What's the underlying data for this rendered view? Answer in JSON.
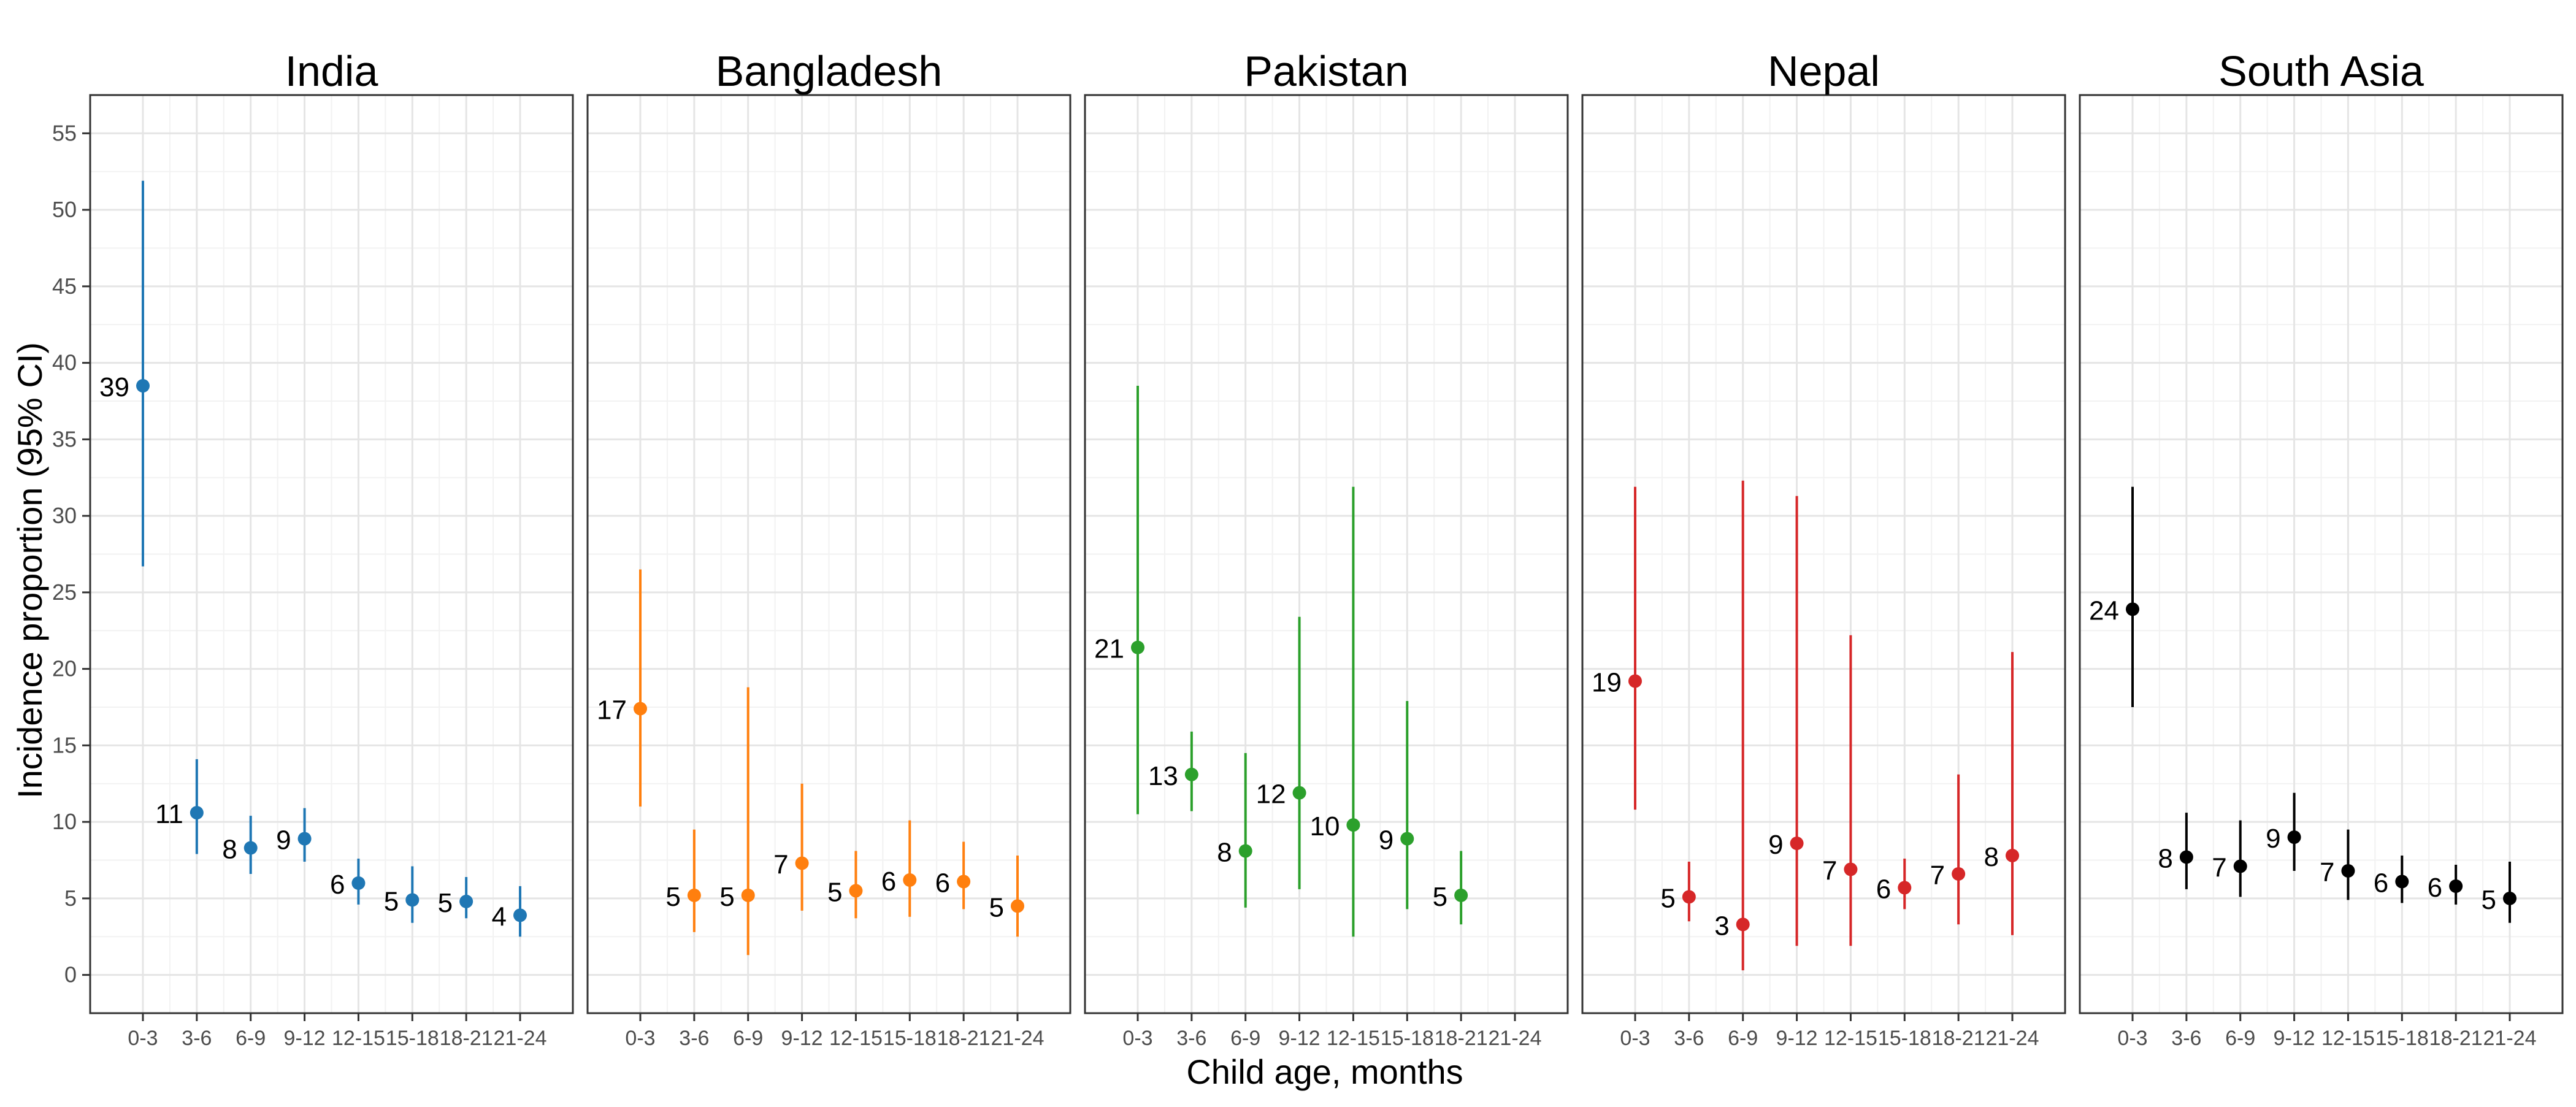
{
  "chart_data": {
    "type": "scatter",
    "variant": "point-range faceted",
    "ylabel": "Incidence proportion (95% CI)",
    "xlabel": "Child age, months",
    "ylim": [
      -2.5,
      57.5
    ],
    "yticks": [
      0,
      5,
      10,
      15,
      20,
      25,
      30,
      35,
      40,
      45,
      50,
      55
    ],
    "categories": [
      "0-3",
      "3-6",
      "6-9",
      "9-12",
      "12-15",
      "15-18",
      "18-21",
      "21-24"
    ],
    "grid": true,
    "legend": "none",
    "panels": [
      {
        "title": "India",
        "color": "#1f77b4",
        "points": [
          {
            "x": "0-3",
            "y": 38.5,
            "lo": 26.7,
            "hi": 51.9,
            "label": "39"
          },
          {
            "x": "3-6",
            "y": 10.6,
            "lo": 7.9,
            "hi": 14.1,
            "label": "11"
          },
          {
            "x": "6-9",
            "y": 8.3,
            "lo": 6.6,
            "hi": 10.4,
            "label": "8"
          },
          {
            "x": "9-12",
            "y": 8.9,
            "lo": 7.4,
            "hi": 10.9,
            "label": "9"
          },
          {
            "x": "12-15",
            "y": 6.0,
            "lo": 4.6,
            "hi": 7.6,
            "label": "6"
          },
          {
            "x": "15-18",
            "y": 4.9,
            "lo": 3.4,
            "hi": 7.1,
            "label": "5"
          },
          {
            "x": "18-21",
            "y": 4.8,
            "lo": 3.7,
            "hi": 6.4,
            "label": "5"
          },
          {
            "x": "21-24",
            "y": 3.9,
            "lo": 2.5,
            "hi": 5.8,
            "label": "4"
          }
        ]
      },
      {
        "title": "Bangladesh",
        "color": "#ff7f0e",
        "points": [
          {
            "x": "0-3",
            "y": 17.4,
            "lo": 11.0,
            "hi": 26.5,
            "label": "17"
          },
          {
            "x": "3-6",
            "y": 5.2,
            "lo": 2.8,
            "hi": 9.5,
            "label": "5"
          },
          {
            "x": "6-9",
            "y": 5.2,
            "lo": 1.3,
            "hi": 18.8,
            "label": "5"
          },
          {
            "x": "9-12",
            "y": 7.3,
            "lo": 4.2,
            "hi": 12.5,
            "label": "7"
          },
          {
            "x": "12-15",
            "y": 5.5,
            "lo": 3.7,
            "hi": 8.1,
            "label": "5"
          },
          {
            "x": "15-18",
            "y": 6.2,
            "lo": 3.8,
            "hi": 10.1,
            "label": "6"
          },
          {
            "x": "18-21",
            "y": 6.1,
            "lo": 4.3,
            "hi": 8.7,
            "label": "6"
          },
          {
            "x": "21-24",
            "y": 4.5,
            "lo": 2.5,
            "hi": 7.8,
            "label": "5"
          }
        ]
      },
      {
        "title": "Pakistan",
        "color": "#2ca02c",
        "points": [
          {
            "x": "0-3",
            "y": 21.4,
            "lo": 10.5,
            "hi": 38.5,
            "label": "21"
          },
          {
            "x": "3-6",
            "y": 13.1,
            "lo": 10.7,
            "hi": 15.9,
            "label": "13"
          },
          {
            "x": "6-9",
            "y": 8.1,
            "lo": 4.4,
            "hi": 14.5,
            "label": "8"
          },
          {
            "x": "9-12",
            "y": 11.9,
            "lo": 5.6,
            "hi": 23.4,
            "label": "12"
          },
          {
            "x": "12-15",
            "y": 9.8,
            "lo": 2.5,
            "hi": 31.9,
            "label": "10"
          },
          {
            "x": "15-18",
            "y": 8.9,
            "lo": 4.3,
            "hi": 17.9,
            "label": "9"
          },
          {
            "x": "18-21",
            "y": 5.2,
            "lo": 3.3,
            "hi": 8.1,
            "label": "5"
          }
        ]
      },
      {
        "title": "Nepal",
        "color": "#d62728",
        "points": [
          {
            "x": "0-3",
            "y": 19.2,
            "lo": 10.8,
            "hi": 31.9,
            "label": "19"
          },
          {
            "x": "3-6",
            "y": 5.1,
            "lo": 3.5,
            "hi": 7.4,
            "label": "5"
          },
          {
            "x": "6-9",
            "y": 3.3,
            "lo": 0.3,
            "hi": 32.3,
            "label": "3"
          },
          {
            "x": "9-12",
            "y": 8.6,
            "lo": 1.9,
            "hi": 31.3,
            "label": "9"
          },
          {
            "x": "12-15",
            "y": 6.9,
            "lo": 1.9,
            "hi": 22.2,
            "label": "7"
          },
          {
            "x": "15-18",
            "y": 5.7,
            "lo": 4.3,
            "hi": 7.6,
            "label": "6"
          },
          {
            "x": "18-21",
            "y": 6.6,
            "lo": 3.3,
            "hi": 13.1,
            "label": "7"
          },
          {
            "x": "21-24",
            "y": 7.8,
            "lo": 2.6,
            "hi": 21.1,
            "label": "8"
          }
        ]
      },
      {
        "title": "South Asia",
        "color": "#000000",
        "points": [
          {
            "x": "0-3",
            "y": 23.9,
            "lo": 17.5,
            "hi": 31.9,
            "label": "24"
          },
          {
            "x": "3-6",
            "y": 7.7,
            "lo": 5.6,
            "hi": 10.6,
            "label": "8"
          },
          {
            "x": "6-9",
            "y": 7.1,
            "lo": 5.1,
            "hi": 10.1,
            "label": "7"
          },
          {
            "x": "9-12",
            "y": 9.0,
            "lo": 6.8,
            "hi": 11.9,
            "label": "9"
          },
          {
            "x": "12-15",
            "y": 6.8,
            "lo": 4.9,
            "hi": 9.5,
            "label": "7"
          },
          {
            "x": "15-18",
            "y": 6.1,
            "lo": 4.7,
            "hi": 7.8,
            "label": "6"
          },
          {
            "x": "18-21",
            "y": 5.8,
            "lo": 4.6,
            "hi": 7.2,
            "label": "6"
          },
          {
            "x": "21-24",
            "y": 5.0,
            "lo": 3.4,
            "hi": 7.4,
            "label": "5"
          }
        ]
      }
    ]
  }
}
